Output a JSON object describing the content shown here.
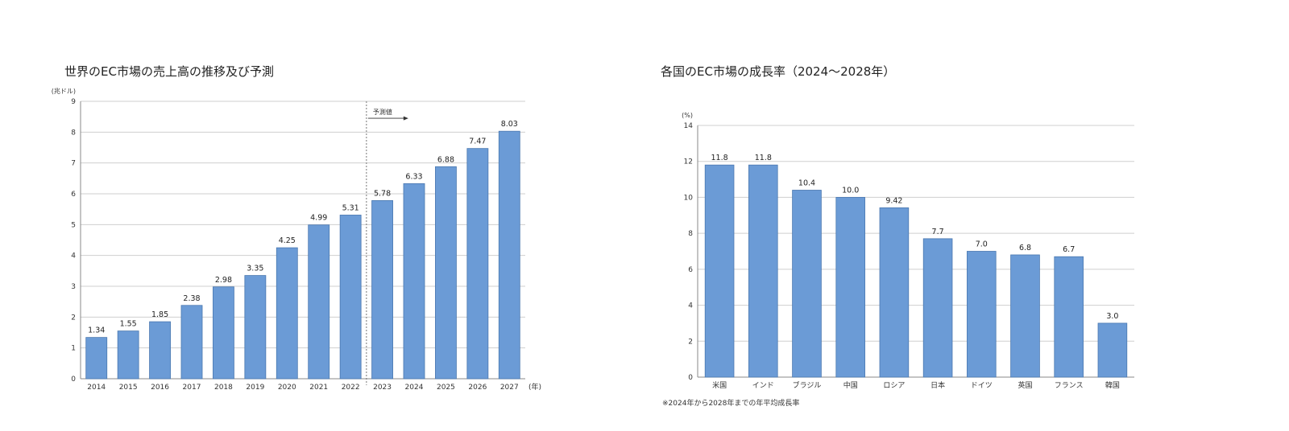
{
  "chart_data": [
    {
      "type": "bar",
      "title": "世界のEC市場の売上高の推移及び予測",
      "y_unit": "(兆ドル)",
      "x_unit": "(年)",
      "categories": [
        "2014",
        "2015",
        "2016",
        "2017",
        "2018",
        "2019",
        "2020",
        "2021",
        "2022",
        "2023",
        "2024",
        "2025",
        "2026",
        "2027"
      ],
      "values": [
        1.34,
        1.55,
        1.85,
        2.38,
        2.98,
        3.35,
        4.25,
        4.99,
        5.31,
        5.78,
        6.33,
        6.88,
        7.47,
        8.03
      ],
      "value_labels": [
        "1.34",
        "1.55",
        "1.85",
        "2.38",
        "2.98",
        "3.35",
        "4.25",
        "4.99",
        "5.31",
        "5.78",
        "6.33",
        "6.88",
        "7.47",
        "8.03"
      ],
      "ylim": [
        0,
        9
      ],
      "yticks": [
        0,
        1,
        2,
        3,
        4,
        5,
        6,
        7,
        8,
        9
      ],
      "grid": true,
      "bar_color": "#6b9bd6",
      "forecast_start": "2023",
      "forecast_label": "予測値"
    },
    {
      "type": "bar",
      "title": "各国のEC市場の成長率（2024〜2028年）",
      "y_unit": "(%)",
      "categories": [
        "米国",
        "インド",
        "ブラジル",
        "中国",
        "ロシア",
        "日本",
        "ドイツ",
        "英国",
        "フランス",
        "韓国"
      ],
      "values": [
        11.8,
        11.8,
        10.4,
        10.0,
        9.42,
        7.7,
        7.0,
        6.8,
        6.7,
        3.0
      ],
      "value_labels": [
        "11.8",
        "11.8",
        "10.4",
        "10.0",
        "9.42",
        "7.7",
        "7.0",
        "6.8",
        "6.7",
        "3.0"
      ],
      "ylim": [
        0,
        14
      ],
      "yticks": [
        0,
        2,
        4,
        6,
        8,
        10,
        12,
        14
      ],
      "grid": true,
      "bar_color": "#6b9bd6",
      "note": "※2024年から2028年までの年平均成長率"
    }
  ]
}
